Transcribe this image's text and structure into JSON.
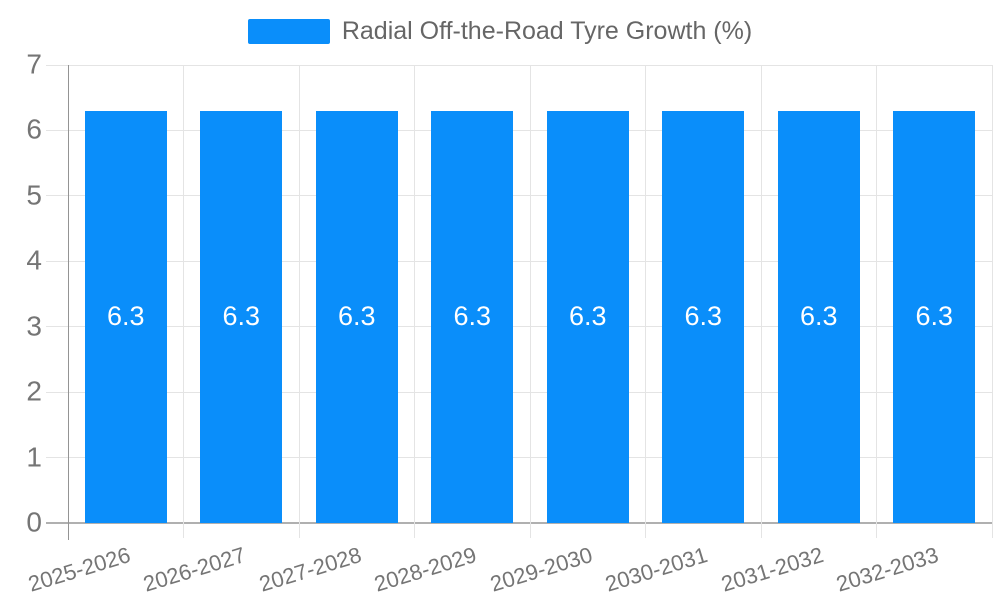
{
  "chart_data": {
    "type": "bar",
    "title": "Radial Off-the-Road Tyre Growth (%)",
    "categories": [
      "2025-2026",
      "2026-2027",
      "2027-2028",
      "2028-2029",
      "2029-2030",
      "2030-2031",
      "2031-2032",
      "2032-2033"
    ],
    "values": [
      6.3,
      6.3,
      6.3,
      6.3,
      6.3,
      6.3,
      6.3,
      6.3
    ],
    "value_labels": [
      "6.3",
      "6.3",
      "6.3",
      "6.3",
      "6.3",
      "6.3",
      "6.3",
      "6.3"
    ],
    "xlabel": "",
    "ylabel": "",
    "ylim": [
      0,
      7
    ],
    "yticks": [
      0,
      1,
      2,
      3,
      4,
      5,
      6,
      7
    ],
    "grid": true,
    "legend": {
      "position": "top-center",
      "entries": [
        "Radial Off-the-Road Tyre Growth (%)"
      ]
    },
    "colors": {
      "bar": "#0a8efa",
      "grid": "#e4e4e4",
      "y_axis_line": "#949494",
      "x_axis_line": "#b0b0b0",
      "axis_label": "#757575",
      "legend_text": "#666666",
      "bar_label": "#ffffff"
    }
  }
}
